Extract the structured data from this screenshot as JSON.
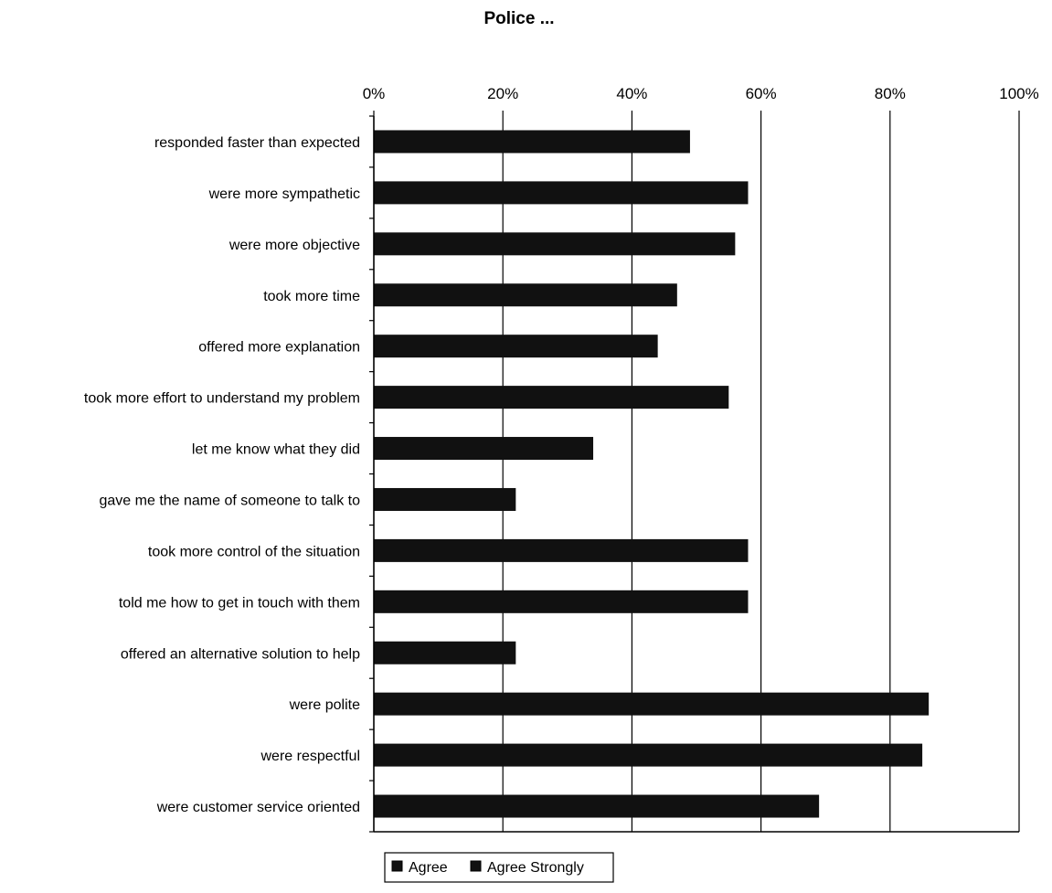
{
  "chart_data": {
    "type": "bar",
    "orientation": "horizontal",
    "title": "Police ...",
    "xlabel": "",
    "ylabel": "",
    "xlim": [
      0,
      100
    ],
    "x_tick_labels": [
      "0%",
      "20%",
      "40%",
      "60%",
      "80%",
      "100%"
    ],
    "grid": "vertical lines at tick marks",
    "legend_position": "bottom",
    "categories": [
      "responded faster than expected",
      "were more sympathetic",
      "were more objective",
      "took more time",
      "offered more explanation",
      "took more effort to understand my problem",
      "let me know what they did",
      "gave me the name of someone to talk to",
      "took more control of the situation",
      "told me how to get in touch with them",
      "offered an alternative solution to help",
      "were polite",
      "were respectful",
      "were customer service oriented"
    ],
    "series": [
      {
        "name": "Agree",
        "values": [
          49,
          58,
          56,
          47,
          44,
          55,
          34,
          22,
          58,
          58,
          22,
          86,
          85,
          69
        ]
      },
      {
        "name": "Agree Strongly",
        "values": [
          0,
          0,
          0,
          0,
          0,
          0,
          0,
          0,
          0,
          0,
          0,
          0,
          0,
          0
        ]
      }
    ],
    "bar_color": "#111111"
  }
}
